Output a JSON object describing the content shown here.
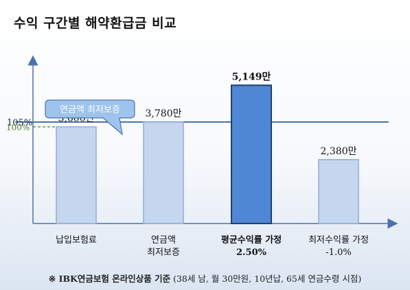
{
  "title": "수익 구간별 해약환급금 비교",
  "colors": {
    "axis": "#4a72b0",
    "bar_light_fill": "#c5d6ee",
    "bar_light_stroke": "#8eaddb",
    "bar_highlight_fill": "#4f87d4",
    "bar_highlight_stroke": "#1f3f6e",
    "ref_105": "#4a72b0",
    "ref_100": "#5a7d2e",
    "callout_fill": "#9ec3ec",
    "callout_stroke": "#4a72b0"
  },
  "callout": {
    "text": "연금액 최저보증"
  },
  "chart_data": {
    "type": "bar",
    "title": "수익 구간별 해약환급금 비교",
    "xlabel": "",
    "ylabel": "",
    "grid": false,
    "legend": "none",
    "categories": [
      [
        "납입보험료"
      ],
      [
        "연금액",
        "최저보증"
      ],
      [
        "평균수익률 가정",
        "2.50%"
      ],
      [
        "최저수익률 가정",
        "-1.0%"
      ]
    ],
    "values": [
      3600,
      3780,
      5149,
      2380
    ],
    "value_labels": [
      "3,600만",
      "3,780만",
      "5,149만",
      "2,380만"
    ],
    "highlight_index": 2,
    "reference_lines": [
      {
        "label": "105%",
        "value": 3780
      },
      {
        "label": "100%",
        "value": 3600
      }
    ],
    "ylim": [
      0,
      6000
    ]
  },
  "footnote": {
    "bold": "※ IBK연금보험 온라인상품 기준",
    "rest": " (38세 남, 월 30만원, 10년납, 65세 연금수령 시점)"
  }
}
